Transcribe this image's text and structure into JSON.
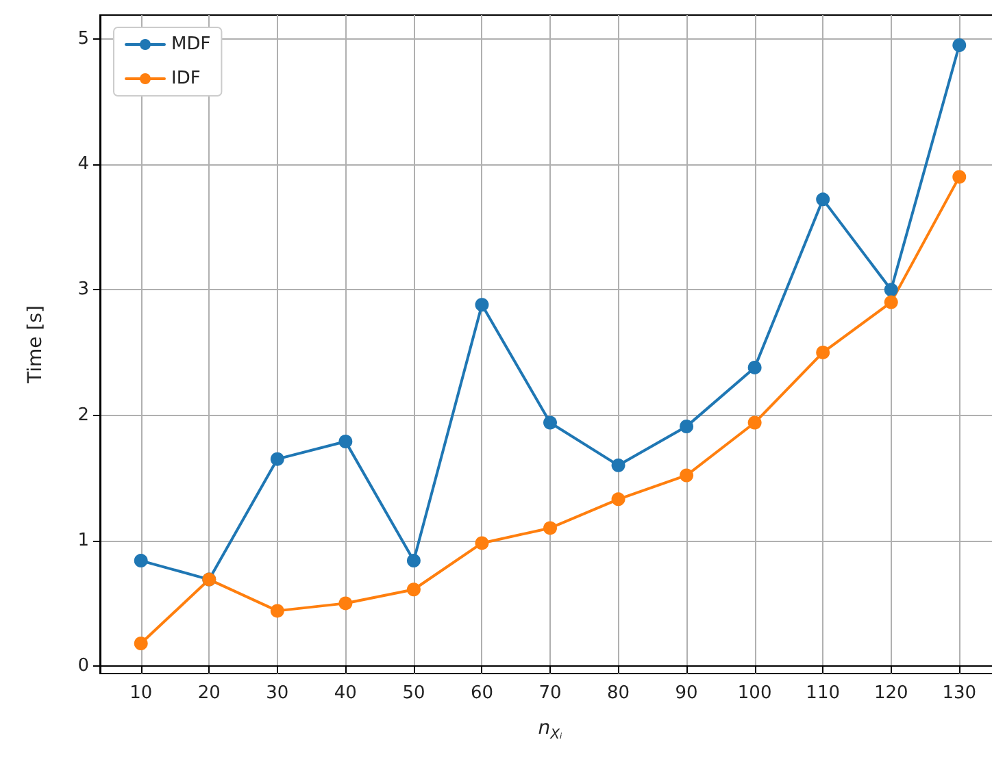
{
  "chart_data": {
    "type": "line",
    "xlabel": "n$_{Xᵢ}$",
    "ylabel": "Time [s]",
    "x": [
      10,
      20,
      30,
      40,
      50,
      60,
      70,
      80,
      90,
      100,
      110,
      120,
      130
    ],
    "series": [
      {
        "name": "MDF",
        "color": "#1f77b4",
        "values": [
          0.84,
          0.69,
          1.65,
          1.79,
          0.84,
          2.88,
          1.94,
          1.6,
          1.91,
          2.38,
          3.72,
          3.0,
          4.95
        ]
      },
      {
        "name": "IDF",
        "color": "#ff7f0e",
        "values": [
          0.18,
          0.69,
          0.44,
          0.5,
          0.61,
          0.98,
          1.1,
          1.33,
          1.52,
          1.94,
          2.5,
          2.9,
          3.9
        ]
      }
    ],
    "xlim": [
      4,
      136
    ],
    "xticks": [
      10,
      20,
      30,
      40,
      50,
      60,
      70,
      80,
      90,
      100,
      110,
      120,
      130
    ],
    "ylim": [
      -0.06,
      5.19
    ],
    "yticks": [
      0,
      1,
      2,
      3,
      4,
      5
    ],
    "grid": true,
    "legend": "top left",
    "marker": "circle",
    "line_style": "solid"
  }
}
